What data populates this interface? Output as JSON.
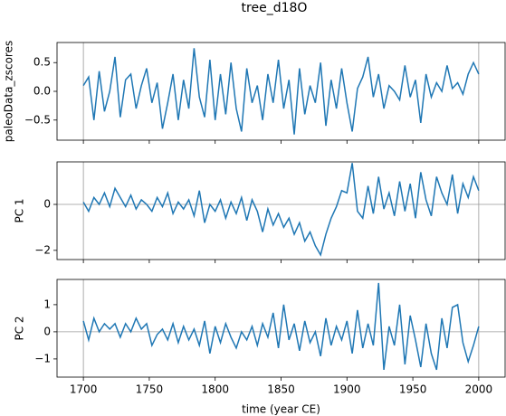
{
  "chart_data": [
    {
      "type": "line",
      "title": "tree_d18O",
      "ylabel": "paleoData_zscores",
      "color": "#1f77b4",
      "x": [
        1700,
        1704,
        1708,
        1712,
        1716,
        1720,
        1724,
        1728,
        1732,
        1736,
        1740,
        1744,
        1748,
        1752,
        1756,
        1760,
        1764,
        1768,
        1772,
        1776,
        1780,
        1784,
        1788,
        1792,
        1796,
        1800,
        1804,
        1808,
        1812,
        1816,
        1820,
        1824,
        1828,
        1832,
        1836,
        1840,
        1844,
        1848,
        1852,
        1856,
        1860,
        1864,
        1868,
        1872,
        1876,
        1880,
        1884,
        1888,
        1892,
        1896,
        1900,
        1904,
        1908,
        1912,
        1916,
        1920,
        1924,
        1928,
        1932,
        1936,
        1940,
        1944,
        1948,
        1952,
        1956,
        1960,
        1964,
        1968,
        1972,
        1976,
        1980,
        1984,
        1988,
        1992,
        1996,
        2000
      ],
      "values": [
        0.1,
        0.25,
        -0.5,
        0.35,
        -0.35,
        0.0,
        0.6,
        -0.45,
        0.2,
        0.3,
        -0.3,
        0.1,
        0.4,
        -0.2,
        0.15,
        -0.65,
        -0.2,
        0.3,
        -0.5,
        0.2,
        -0.3,
        0.75,
        -0.1,
        -0.45,
        0.55,
        -0.5,
        0.3,
        -0.4,
        0.5,
        -0.3,
        -0.7,
        0.4,
        -0.2,
        0.1,
        -0.5,
        0.3,
        -0.2,
        0.55,
        -0.3,
        0.2,
        -0.75,
        0.4,
        -0.4,
        0.1,
        -0.2,
        0.5,
        -0.6,
        0.2,
        -0.3,
        0.4,
        -0.2,
        -0.7,
        0.05,
        0.25,
        0.6,
        -0.1,
        0.3,
        -0.3,
        0.1,
        0.0,
        -0.15,
        0.45,
        -0.1,
        0.2,
        -0.55,
        0.3,
        -0.1,
        0.15,
        0.0,
        0.45,
        0.05,
        0.15,
        -0.05,
        0.3,
        0.5,
        0.3
      ],
      "xlim": [
        1680,
        2020
      ],
      "ylim": [
        -0.85,
        0.85
      ],
      "yticks": [
        0.5,
        {
          "value": 0,
          "label": "0.0"
        },
        {
          "value": -0.5,
          "label": "−0.5"
        }
      ],
      "vlines": [
        1700,
        2000
      ]
    },
    {
      "type": "line",
      "ylabel": "PC 1",
      "color": "#1f77b4",
      "x": [
        1700,
        1704,
        1708,
        1712,
        1716,
        1720,
        1724,
        1728,
        1732,
        1736,
        1740,
        1744,
        1748,
        1752,
        1756,
        1760,
        1764,
        1768,
        1772,
        1776,
        1780,
        1784,
        1788,
        1792,
        1796,
        1800,
        1804,
        1808,
        1812,
        1816,
        1820,
        1824,
        1828,
        1832,
        1836,
        1840,
        1844,
        1848,
        1852,
        1856,
        1860,
        1864,
        1868,
        1872,
        1876,
        1880,
        1884,
        1888,
        1892,
        1896,
        1900,
        1904,
        1908,
        1912,
        1916,
        1920,
        1924,
        1928,
        1932,
        1936,
        1940,
        1944,
        1948,
        1952,
        1956,
        1960,
        1964,
        1968,
        1972,
        1976,
        1980,
        1984,
        1988,
        1992,
        1996,
        2000
      ],
      "values": [
        0.1,
        -0.3,
        0.3,
        0.0,
        0.5,
        -0.1,
        0.7,
        0.3,
        -0.1,
        0.4,
        -0.2,
        0.2,
        0.0,
        -0.3,
        0.3,
        -0.1,
        0.5,
        -0.4,
        0.1,
        -0.2,
        0.2,
        -0.5,
        0.6,
        -0.8,
        0.0,
        -0.3,
        0.2,
        -0.6,
        0.1,
        -0.4,
        0.3,
        -0.7,
        0.2,
        -0.3,
        -1.2,
        -0.2,
        -0.9,
        -0.4,
        -1.0,
        -0.6,
        -1.3,
        -0.8,
        -1.6,
        -1.2,
        -1.8,
        -2.2,
        -1.3,
        -0.6,
        -0.1,
        0.6,
        0.5,
        1.8,
        -0.3,
        -0.6,
        0.8,
        -0.4,
        1.2,
        -0.2,
        0.5,
        -0.5,
        1.0,
        -0.3,
        0.9,
        -0.6,
        1.4,
        0.2,
        -0.5,
        1.2,
        0.5,
        0.0,
        1.3,
        -0.4,
        0.9,
        0.3,
        1.2,
        0.6
      ],
      "xlim": [
        1680,
        2020
      ],
      "ylim": [
        -2.4,
        1.85
      ],
      "yticks": [
        0,
        {
          "value": -2,
          "label": "−2"
        }
      ],
      "vlines": [
        1700,
        2000
      ],
      "hline": 0
    },
    {
      "type": "line",
      "ylabel": "PC 2",
      "xlabel": "time (year CE)",
      "color": "#1f77b4",
      "x": [
        1700,
        1704,
        1708,
        1712,
        1716,
        1720,
        1724,
        1728,
        1732,
        1736,
        1740,
        1744,
        1748,
        1752,
        1756,
        1760,
        1764,
        1768,
        1772,
        1776,
        1780,
        1784,
        1788,
        1792,
        1796,
        1800,
        1804,
        1808,
        1812,
        1816,
        1820,
        1824,
        1828,
        1832,
        1836,
        1840,
        1844,
        1848,
        1852,
        1856,
        1860,
        1864,
        1868,
        1872,
        1876,
        1880,
        1884,
        1888,
        1892,
        1896,
        1900,
        1904,
        1908,
        1912,
        1916,
        1920,
        1924,
        1928,
        1932,
        1936,
        1940,
        1944,
        1948,
        1952,
        1956,
        1960,
        1964,
        1968,
        1972,
        1976,
        1980,
        1984,
        1988,
        1992,
        1996,
        2000
      ],
      "values": [
        0.4,
        -0.3,
        0.5,
        0.0,
        0.3,
        0.1,
        0.3,
        -0.2,
        0.3,
        0.0,
        0.5,
        0.1,
        0.3,
        -0.5,
        -0.1,
        0.1,
        -0.3,
        0.3,
        -0.4,
        0.2,
        -0.3,
        0.1,
        -0.5,
        0.4,
        -0.8,
        0.2,
        -0.4,
        0.3,
        -0.2,
        -0.6,
        0.0,
        -0.3,
        0.2,
        -0.5,
        0.3,
        -0.2,
        0.7,
        -0.6,
        1.0,
        -0.3,
        0.3,
        -0.7,
        0.4,
        -0.4,
        0.0,
        -0.9,
        0.5,
        -0.5,
        0.2,
        -0.3,
        0.4,
        -0.8,
        0.8,
        -0.6,
        0.3,
        -0.5,
        1.8,
        -1.4,
        0.2,
        -0.5,
        1.0,
        -1.2,
        0.6,
        -0.3,
        -1.3,
        0.3,
        -0.8,
        -1.4,
        0.5,
        -0.6,
        0.9,
        1.0,
        -0.4,
        -1.1,
        -0.5,
        0.2
      ],
      "xlim": [
        1680,
        2020
      ],
      "ylim": [
        -1.67,
        1.93
      ],
      "yticks": [
        1,
        0,
        {
          "value": -1,
          "label": "−1"
        }
      ],
      "xticks": [
        1700,
        1750,
        1800,
        1850,
        1900,
        1950,
        2000
      ],
      "vlines": [
        1700,
        2000
      ],
      "hline": 0
    }
  ]
}
